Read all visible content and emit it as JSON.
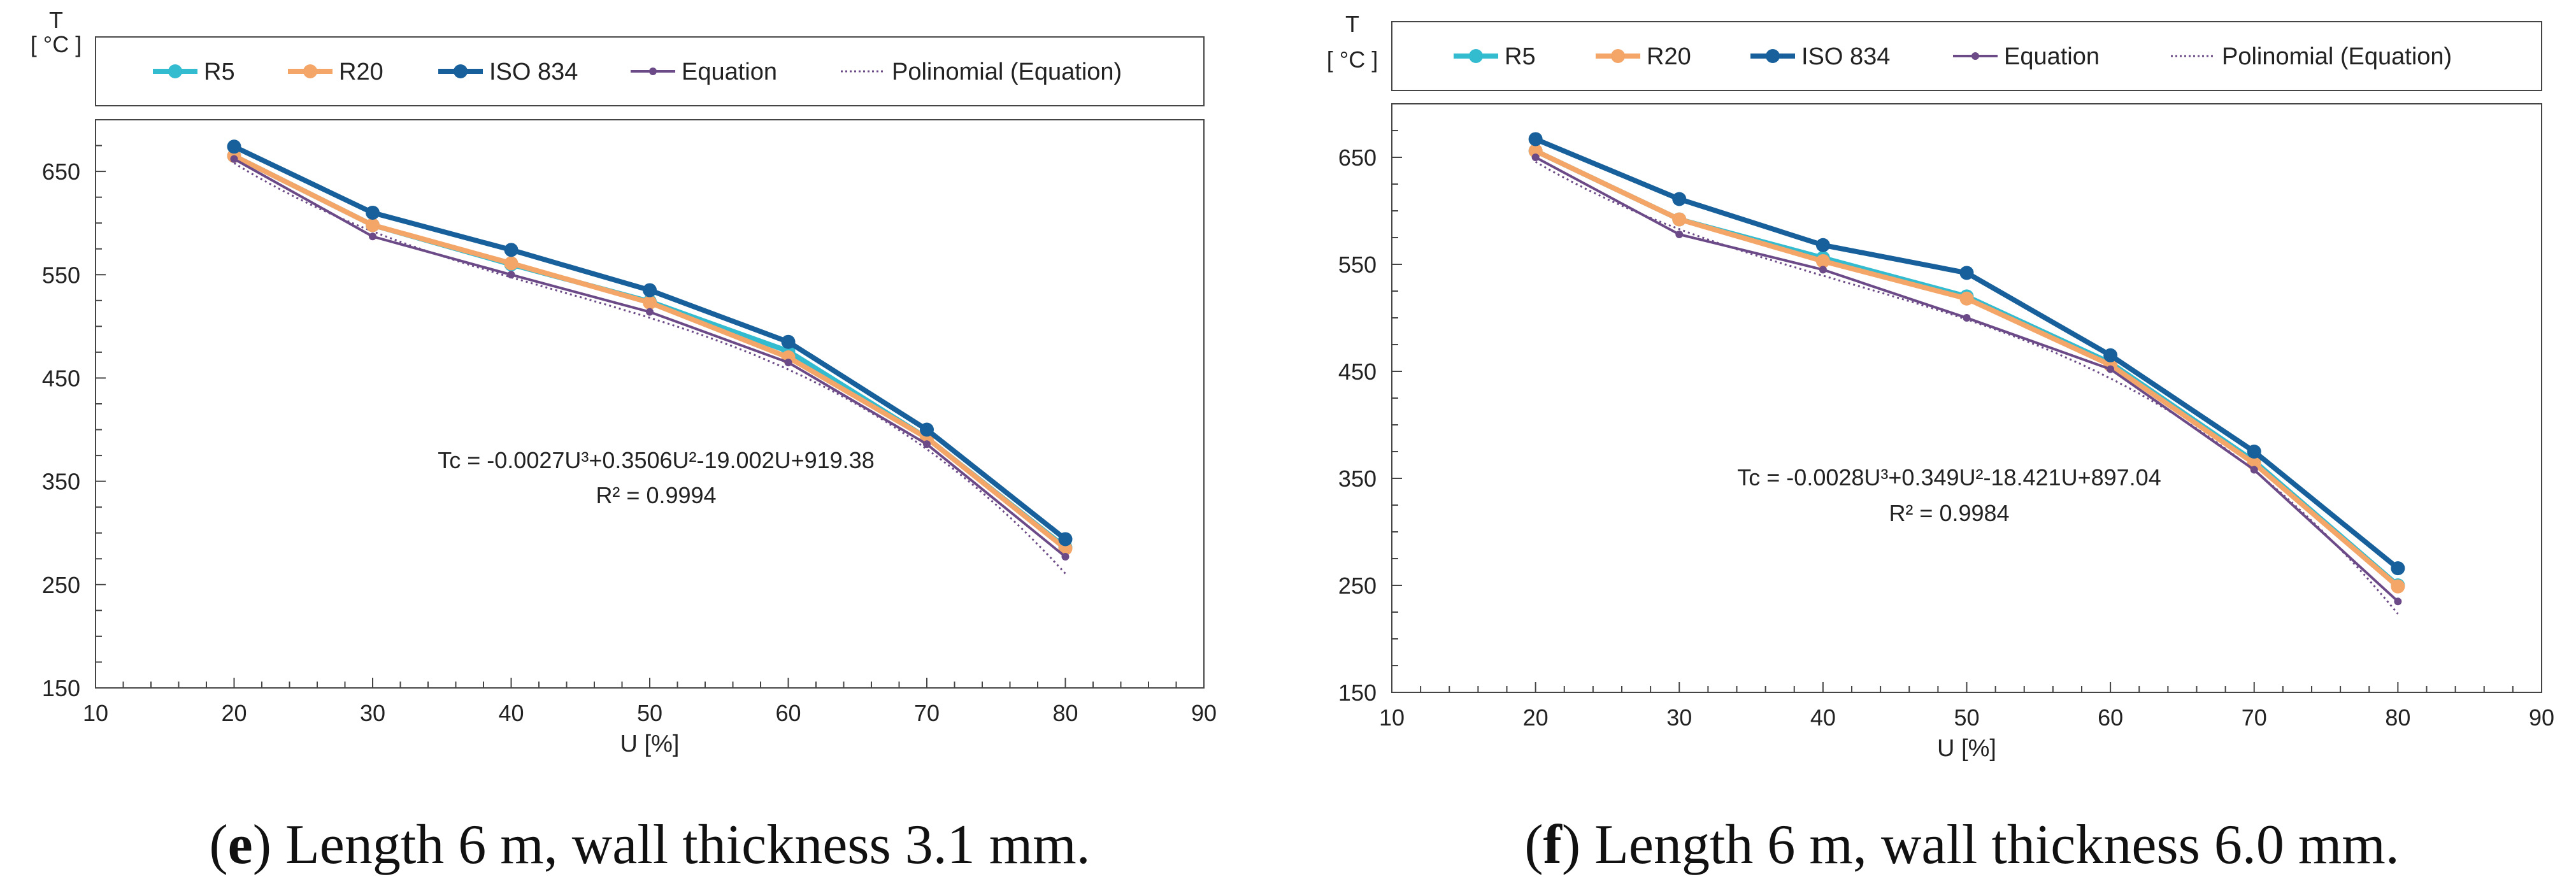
{
  "chart_data": [
    {
      "type": "line",
      "title": "",
      "ylabel_line1": "T",
      "ylabel_line2": "[ °C ]",
      "xlabel": "U [%]",
      "xlim": [
        10,
        90
      ],
      "ylim": [
        150,
        700
      ],
      "xticks": [
        10,
        20,
        30,
        40,
        50,
        60,
        70,
        80,
        90
      ],
      "yticks": [
        150,
        250,
        350,
        450,
        550,
        650
      ],
      "x": [
        20,
        30,
        40,
        50,
        60,
        70,
        80
      ],
      "series": [
        {
          "name": "R5",
          "color": "#33bbd0",
          "values": [
            665,
            598,
            560,
            524,
            476,
            392,
            286
          ]
        },
        {
          "name": "R20",
          "color": "#f4a668",
          "values": [
            665,
            598,
            561,
            523,
            470,
            392,
            285
          ]
        },
        {
          "name": "ISO 834",
          "color": "#17609b",
          "values": [
            674,
            610,
            574,
            535,
            485,
            400,
            294
          ]
        },
        {
          "name": "Equation",
          "color": "#6b4a87",
          "values": [
            662,
            587,
            550,
            514,
            465,
            386,
            277
          ]
        }
      ],
      "trendline": {
        "name": "Polinomial (Equation)",
        "color": "#6b4a87",
        "a": -0.0027,
        "b": 0.3506,
        "c": -19.002,
        "d": 919.38
      },
      "equation_text": "Tc = -0.0027U³+0.3506U²-19.002U+919.38",
      "r2_text": "R² = 0.9994",
      "caption_letter": "e",
      "caption_text": ") Length 6 m, wall thickness 3.1 mm."
    },
    {
      "type": "line",
      "title": "",
      "ylabel_line1": "T",
      "ylabel_line2": "[ °C ]",
      "xlabel": "U [%]",
      "xlim": [
        10,
        90
      ],
      "ylim": [
        150,
        700
      ],
      "xticks": [
        10,
        20,
        30,
        40,
        50,
        60,
        70,
        80,
        90
      ],
      "yticks": [
        150,
        250,
        350,
        450,
        550,
        650
      ],
      "x": [
        20,
        30,
        40,
        50,
        60,
        70,
        80
      ],
      "series": [
        {
          "name": "R5",
          "color": "#33bbd0",
          "values": [
            656,
            592,
            556,
            520,
            458,
            366,
            250
          ]
        },
        {
          "name": "R20",
          "color": "#f4a668",
          "values": [
            656,
            592,
            553,
            518,
            456,
            364,
            249
          ]
        },
        {
          "name": "ISO 834",
          "color": "#17609b",
          "values": [
            667,
            611,
            568,
            542,
            465,
            375,
            266
          ]
        },
        {
          "name": "Equation",
          "color": "#6b4a87",
          "values": [
            650,
            578,
            545,
            500,
            452,
            358,
            235
          ]
        }
      ],
      "trendline": {
        "name": "Polinomial (Equation)",
        "color": "#6b4a87",
        "a": -0.0028,
        "b": 0.349,
        "c": -18.421,
        "d": 897.04
      },
      "equation_text": "Tc = -0.0028U³+0.349U²-18.421U+897.04",
      "r2_text": "R² = 0.9984",
      "caption_letter": "f",
      "caption_text": ") Length 6 m, wall thickness 6.0 mm."
    }
  ]
}
